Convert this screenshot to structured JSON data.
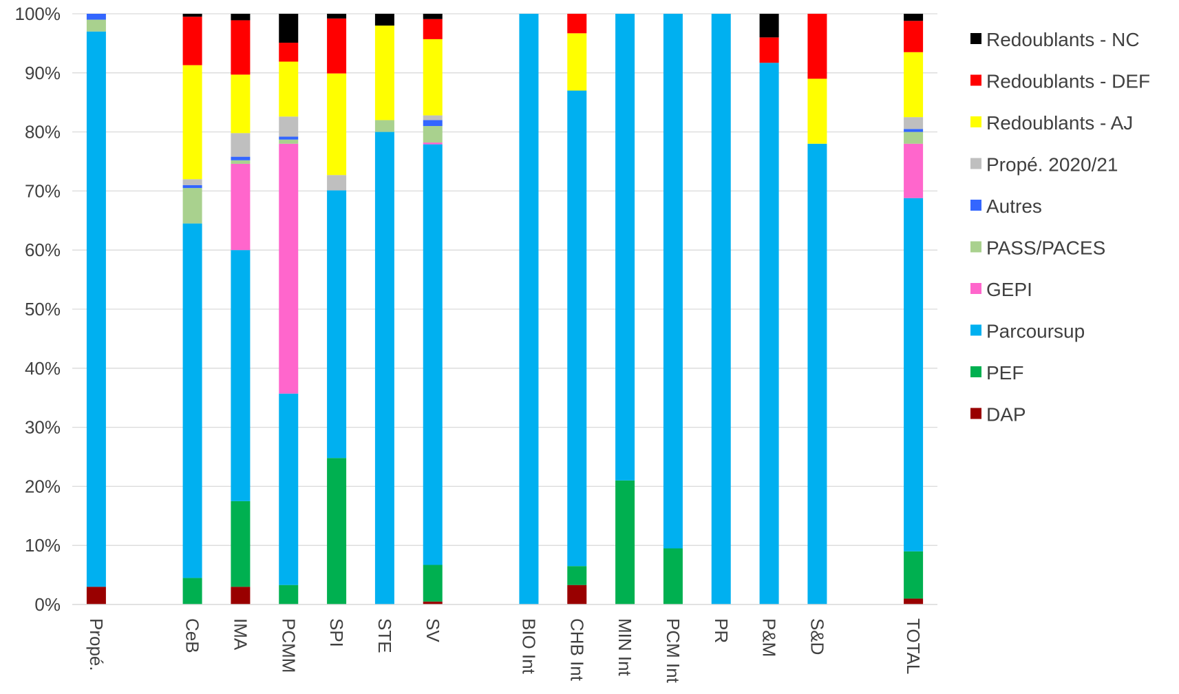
{
  "chart_data": {
    "type": "bar",
    "stacked": true,
    "normalized": true,
    "categories": [
      "Propé.",
      "",
      "CeB",
      "IMA",
      "PCMM",
      "SPI",
      "STE",
      "SV",
      "",
      "BIO Int",
      "CHB Int",
      "MIN Int",
      "PCM Int",
      "PR",
      "P&M",
      "S&D",
      "",
      "TOTAL"
    ],
    "ylim": [
      0,
      100
    ],
    "yticks": [
      "0%",
      "10%",
      "20%",
      "30%",
      "40%",
      "50%",
      "60%",
      "70%",
      "80%",
      "90%",
      "100%"
    ],
    "grid": true,
    "legend_position": "right",
    "series": [
      {
        "name": "DAP",
        "color": "#990000",
        "values": [
          3,
          0,
          0,
          3,
          0,
          0,
          0,
          0.5,
          0,
          0,
          3.3,
          0,
          0,
          0,
          0,
          0,
          0,
          1
        ]
      },
      {
        "name": "PEF",
        "color": "#00B050",
        "values": [
          0,
          0,
          4.5,
          14.5,
          3.3,
          24.8,
          0,
          6.2,
          0,
          0,
          3.2,
          21,
          9.5,
          0,
          0,
          0,
          0,
          8
        ]
      },
      {
        "name": "Parcoursup",
        "color": "#00B0F0",
        "values": [
          94,
          0,
          60,
          42.5,
          32.4,
          45.3,
          80,
          71.2,
          0,
          100,
          80.5,
          79,
          90.5,
          100,
          91.7,
          78,
          0,
          59.8
        ]
      },
      {
        "name": "GEPI",
        "color": "#FF66CC",
        "values": [
          0,
          0,
          0,
          14.6,
          42.3,
          0,
          0,
          0.3,
          0,
          0,
          0,
          0,
          0,
          0,
          0,
          0,
          0,
          9.2
        ]
      },
      {
        "name": "PASS/PACES",
        "color": "#A9D18E",
        "values": [
          2,
          0,
          6,
          0.6,
          0.7,
          0,
          2,
          2.8,
          0,
          0,
          0,
          0,
          0,
          0,
          0,
          0,
          0,
          2
        ]
      },
      {
        "name": "Autres",
        "color": "#3366FF",
        "values": [
          1,
          0,
          0.5,
          0.6,
          0.5,
          0,
          0,
          1,
          0,
          0,
          0,
          0,
          0,
          0,
          0,
          0,
          0,
          0.5
        ]
      },
      {
        "name": "Propé. 2020/21",
        "color": "#BFBFBF",
        "values": [
          0,
          0,
          1,
          4,
          3.4,
          2.6,
          0,
          0.8,
          0,
          0,
          0,
          0,
          0,
          0,
          0,
          0,
          0,
          2
        ]
      },
      {
        "name": "Redoublants - AJ",
        "color": "#FFFF00",
        "values": [
          0,
          0,
          19.3,
          9.9,
          9.3,
          17.2,
          16,
          12.9,
          0,
          0,
          9.7,
          0,
          0,
          0,
          0,
          11,
          0,
          11
        ]
      },
      {
        "name": "Redoublants - DEF",
        "color": "#FF0000",
        "values": [
          0,
          0,
          8.2,
          9.2,
          3.2,
          9.3,
          0,
          3.4,
          0,
          0,
          3.3,
          0,
          0,
          0,
          4.3,
          11,
          0,
          5.3
        ]
      },
      {
        "name": "Redoublants - NC",
        "color": "#000000",
        "values": [
          0,
          0,
          0.5,
          1.1,
          4.9,
          0.8,
          2,
          0.9,
          0,
          0,
          0,
          0,
          0,
          0,
          4,
          0,
          0,
          1.2
        ]
      }
    ]
  }
}
